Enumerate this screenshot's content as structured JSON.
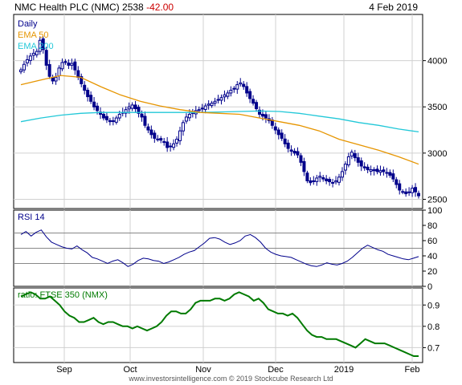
{
  "header": {
    "name": "NMC Health PLC (NMC)",
    "last": "2538",
    "change": "-42.00",
    "date": "4 Feb 2019"
  },
  "legend": {
    "daily": "Daily",
    "ema50": "EMA 50",
    "ema200": "EMA 200",
    "rsi": "RSI 14",
    "ratio": "ratio: FTSE 350 (NMX)"
  },
  "footer": {
    "copyright": "www.investorsintelligence.com   © 2019 Stockcube Research Ltd"
  },
  "colors": {
    "candles": "#00008b",
    "ema50": "#e69500",
    "ema200": "#22c8d8",
    "rsi": "#00008b",
    "ratio": "#007a00",
    "grid": "#d0d0d0",
    "frame": "#000000"
  },
  "chart_data": [
    {
      "type": "candlestick",
      "title": "NMC Health PLC (NMC)",
      "x_tick_labels": [
        "Sep",
        "Oct",
        "Nov",
        "Dec",
        "2019",
        "Feb"
      ],
      "ylim": [
        2400,
        4500
      ],
      "y_ticks": [
        2500,
        3000,
        3500,
        4000
      ],
      "grid": true,
      "close_series": [
        3900,
        3960,
        4010,
        4050,
        4080,
        4100,
        4220,
        4120,
        3950,
        3830,
        3780,
        3820,
        3920,
        3980,
        3990,
        3950,
        3970,
        3900,
        3820,
        3750,
        3680,
        3610,
        3560,
        3500,
        3460,
        3420,
        3380,
        3360,
        3340,
        3350,
        3380,
        3420,
        3440,
        3470,
        3500,
        3520,
        3480,
        3430,
        3390,
        3300,
        3250,
        3200,
        3160,
        3150,
        3140,
        3120,
        3060,
        3070,
        3100,
        3150,
        3240,
        3330,
        3390,
        3420,
        3440,
        3460,
        3470,
        3480,
        3510,
        3530,
        3540,
        3560,
        3580,
        3600,
        3630,
        3650,
        3680,
        3700,
        3740,
        3760,
        3720,
        3650,
        3590,
        3540,
        3480,
        3420,
        3400,
        3380,
        3350,
        3300,
        3250,
        3200,
        3160,
        3100,
        3050,
        3020,
        3000,
        2980,
        2900,
        2800,
        2700,
        2680,
        2700,
        2730,
        2750,
        2720,
        2700,
        2690,
        2680,
        2700,
        2740,
        2800,
        2880,
        2960,
        3010,
        2950,
        2900,
        2860,
        2840,
        2820,
        2820,
        2810,
        2800,
        2810,
        2800,
        2790,
        2760,
        2720,
        2660,
        2600,
        2580,
        2560,
        2580,
        2620,
        2580,
        2538
      ],
      "series": [
        {
          "name": "EMA 50",
          "values_start_end": [
            3740,
            2880
          ],
          "path_points": [
            3740,
            3790,
            3840,
            3820,
            3720,
            3630,
            3560,
            3510,
            3470,
            3440,
            3430,
            3420,
            3380,
            3340,
            3300,
            3240,
            3150,
            3090,
            3030,
            2960,
            2880
          ]
        },
        {
          "name": "EMA 200",
          "values_start_end": [
            3340,
            3230
          ],
          "path_points": [
            3340,
            3380,
            3410,
            3430,
            3440,
            3440,
            3440,
            3440,
            3440,
            3440,
            3445,
            3450,
            3455,
            3450,
            3430,
            3400,
            3370,
            3330,
            3300,
            3260,
            3230
          ]
        }
      ]
    },
    {
      "type": "line",
      "title": "RSI 14",
      "ylim": [
        0,
        100
      ],
      "y_ticks": [
        0,
        20,
        40,
        60,
        80,
        100
      ],
      "reference_lines": [
        30,
        50,
        70
      ],
      "values": [
        68,
        72,
        66,
        71,
        74,
        65,
        58,
        55,
        52,
        50,
        49,
        53,
        48,
        44,
        38,
        36,
        33,
        30,
        33,
        35,
        31,
        26,
        29,
        34,
        37,
        36,
        34,
        33,
        30,
        32,
        35,
        38,
        42,
        45,
        47,
        52,
        57,
        63,
        64,
        62,
        58,
        55,
        57,
        60,
        66,
        68,
        64,
        58,
        50,
        45,
        42,
        40,
        39,
        38,
        35,
        32,
        29,
        27,
        26,
        28,
        31,
        29,
        28,
        30,
        33,
        38,
        44,
        50,
        54,
        51,
        48,
        46,
        42,
        40,
        38,
        36,
        35,
        37,
        39
      ]
    },
    {
      "type": "line",
      "title": "ratio: FTSE 350 (NMX)",
      "ylim": [
        0.63,
        0.98
      ],
      "y_ticks": [
        0.7,
        0.8,
        0.9
      ],
      "values": [
        0.94,
        0.95,
        0.96,
        0.95,
        0.93,
        0.93,
        0.94,
        0.92,
        0.9,
        0.87,
        0.85,
        0.84,
        0.82,
        0.82,
        0.83,
        0.84,
        0.82,
        0.81,
        0.82,
        0.82,
        0.81,
        0.8,
        0.8,
        0.79,
        0.8,
        0.79,
        0.78,
        0.79,
        0.8,
        0.82,
        0.85,
        0.87,
        0.87,
        0.86,
        0.86,
        0.88,
        0.91,
        0.92,
        0.92,
        0.92,
        0.93,
        0.93,
        0.92,
        0.93,
        0.95,
        0.96,
        0.95,
        0.94,
        0.92,
        0.93,
        0.91,
        0.88,
        0.87,
        0.86,
        0.86,
        0.85,
        0.86,
        0.84,
        0.81,
        0.78,
        0.76,
        0.75,
        0.75,
        0.74,
        0.74,
        0.74,
        0.73,
        0.72,
        0.71,
        0.7,
        0.72,
        0.74,
        0.73,
        0.72,
        0.72,
        0.72,
        0.71,
        0.7,
        0.69,
        0.68,
        0.67,
        0.66,
        0.66
      ]
    }
  ]
}
